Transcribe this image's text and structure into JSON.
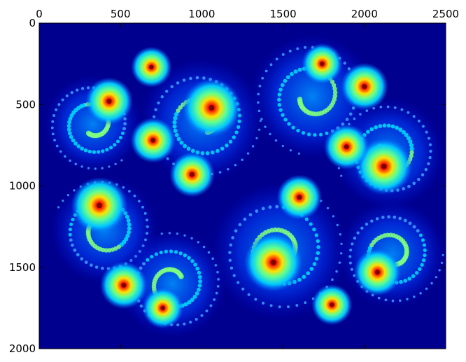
{
  "chart_data": {
    "type": "heatmap",
    "title": "",
    "xlabel": "",
    "ylabel": "",
    "xlim": [
      0,
      2500
    ],
    "ylim": [
      2000,
      0
    ],
    "x_ticks": [
      "0",
      "500",
      "1000",
      "1500",
      "2000",
      "2500"
    ],
    "y_ticks": [
      "0",
      "500",
      "1000",
      "1500",
      "2000"
    ],
    "x_tick_values": [
      0,
      500,
      1000,
      1500,
      2000,
      2500
    ],
    "y_tick_values": [
      0,
      500,
      1000,
      1500,
      2000
    ],
    "x_axis_position": "top",
    "y_axis_origin": "top",
    "colormap": "jet",
    "background_color": "#00008f",
    "grid": false,
    "legend": "none",
    "content": "Julia set fractal: escape-iteration counts rendered with the jet colormap",
    "hotspots": [
      {
        "x": 1060,
        "y": 520,
        "intensity": 1.0
      },
      {
        "x": 1440,
        "y": 1470,
        "intensity": 1.0
      },
      {
        "x": 370,
        "y": 1120,
        "intensity": 0.95
      },
      {
        "x": 2120,
        "y": 880,
        "intensity": 0.95
      },
      {
        "x": 700,
        "y": 720,
        "intensity": 0.7
      },
      {
        "x": 940,
        "y": 930,
        "intensity": 0.7
      },
      {
        "x": 1890,
        "y": 760,
        "intensity": 0.7
      },
      {
        "x": 1600,
        "y": 1070,
        "intensity": 0.7
      },
      {
        "x": 430,
        "y": 480,
        "intensity": 0.75
      },
      {
        "x": 2000,
        "y": 390,
        "intensity": 0.75
      },
      {
        "x": 520,
        "y": 1610,
        "intensity": 0.75
      },
      {
        "x": 2080,
        "y": 1530,
        "intensity": 0.75
      },
      {
        "x": 690,
        "y": 270,
        "intensity": 0.6
      },
      {
        "x": 1740,
        "y": 250,
        "intensity": 0.6
      },
      {
        "x": 760,
        "y": 1750,
        "intensity": 0.6
      },
      {
        "x": 1800,
        "y": 1730,
        "intensity": 0.6
      }
    ],
    "clusters": [
      {
        "id": "upper-middle-spiral",
        "cx": 1000,
        "cy": 600,
        "r": 380
      },
      {
        "id": "upper-left-spiral",
        "cx": 330,
        "cy": 620,
        "r": 300
      },
      {
        "id": "upper-right-spiral",
        "cx": 1680,
        "cy": 450,
        "r": 380
      },
      {
        "id": "right-spiral",
        "cx": 2150,
        "cy": 800,
        "r": 340
      },
      {
        "id": "left-spiral",
        "cx": 400,
        "cy": 1270,
        "r": 330
      },
      {
        "id": "lower-left-spiral",
        "cx": 820,
        "cy": 1600,
        "r": 330
      },
      {
        "id": "lower-middle-spiral",
        "cx": 1480,
        "cy": 1400,
        "r": 420
      },
      {
        "id": "lower-right-spiral",
        "cx": 2170,
        "cy": 1420,
        "r": 330
      }
    ]
  }
}
